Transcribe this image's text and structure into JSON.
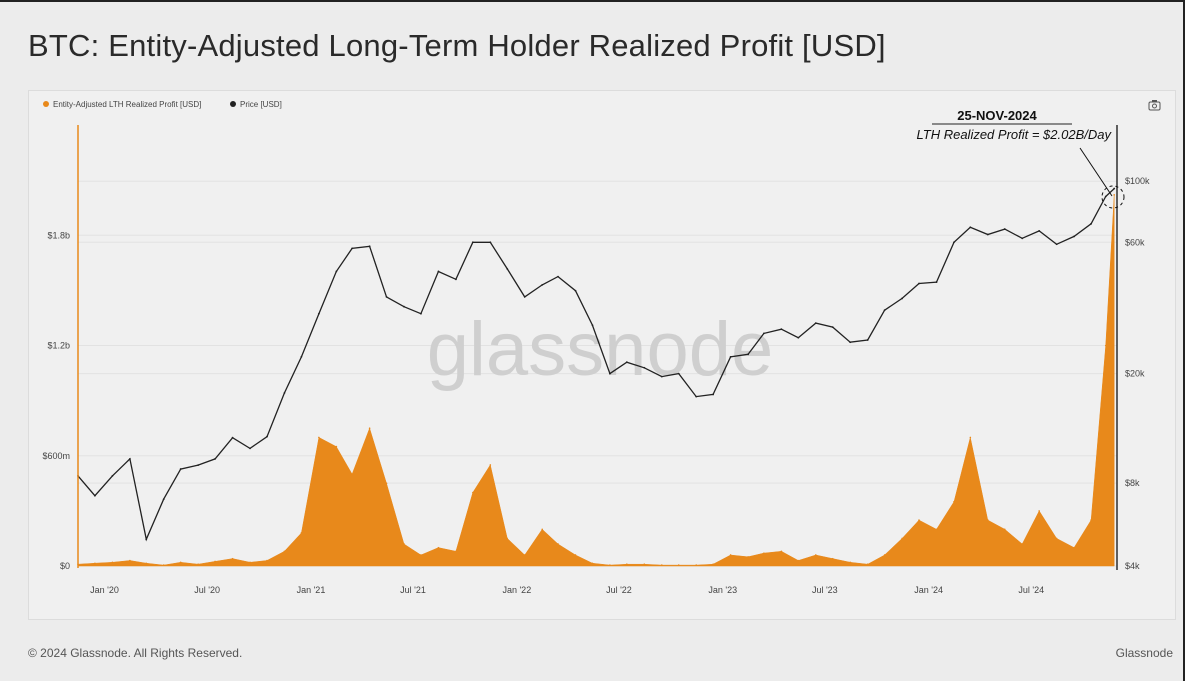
{
  "title": "BTC: Entity-Adjusted Long-Term Holder Realized Profit [USD]",
  "footer": {
    "copyright": "© 2024 Glassnode. All Rights Reserved.",
    "brand": "Glassnode"
  },
  "watermark": "glassnode",
  "icons": {
    "screenshot": "camera-icon"
  },
  "colors": {
    "profit": "#e8891b",
    "price": "#222222",
    "background": "#f0f0f0"
  },
  "chart_data": {
    "type": "area+line",
    "title": "BTC: Entity-Adjusted Long-Term Holder Realized Profit [USD]",
    "legend": {
      "placement": "top-left",
      "entries": [
        "Entity-Adjusted LTH Realized Profit [USD]",
        "Price [USD]"
      ]
    },
    "grid": true,
    "x_ticks": [
      "Jan '20",
      "Jul '20",
      "Jan '21",
      "Jul '21",
      "Jan '22",
      "Jul '22",
      "Jan '23",
      "Jul '23",
      "Jan '24",
      "Jul '24"
    ],
    "x_tick_dates": [
      "2020-01-01",
      "2020-07-01",
      "2021-01-01",
      "2021-07-01",
      "2022-01-01",
      "2022-07-01",
      "2023-01-01",
      "2023-07-01",
      "2024-01-01",
      "2024-07-01"
    ],
    "x_range": [
      "2019-11-15",
      "2024-11-30"
    ],
    "y_left": {
      "scale": "linear",
      "range": [
        0,
        2400000000
      ],
      "ticks": [
        0,
        600000000,
        1200000000,
        1800000000
      ],
      "tick_labels": [
        "$0",
        "$600m",
        "$1.2b",
        "$1.8b"
      ]
    },
    "y_right": {
      "scale": "log",
      "range": [
        4000,
        160000
      ],
      "ticks": [
        4000,
        8000,
        20000,
        60000,
        100000
      ],
      "tick_labels": [
        "$4k",
        "$8k",
        "$20k",
        "$60k",
        "$100k"
      ]
    },
    "annotation": {
      "date": "25-NOV-2024",
      "text": "LTH Realized Profit = $2.02B/Day",
      "value": 2020000000
    },
    "dates": [
      "2019-11-15",
      "2019-12-15",
      "2020-01-15",
      "2020-02-15",
      "2020-03-15",
      "2020-04-15",
      "2020-05-15",
      "2020-06-15",
      "2020-07-15",
      "2020-08-15",
      "2020-09-15",
      "2020-10-15",
      "2020-11-15",
      "2020-12-15",
      "2021-01-15",
      "2021-02-15",
      "2021-03-15",
      "2021-04-15",
      "2021-05-15",
      "2021-06-15",
      "2021-07-15",
      "2021-08-15",
      "2021-09-15",
      "2021-10-15",
      "2021-11-15",
      "2021-12-15",
      "2022-01-15",
      "2022-02-15",
      "2022-03-15",
      "2022-04-15",
      "2022-05-15",
      "2022-06-15",
      "2022-07-15",
      "2022-08-15",
      "2022-09-15",
      "2022-10-15",
      "2022-11-15",
      "2022-12-15",
      "2023-01-15",
      "2023-02-15",
      "2023-03-15",
      "2023-04-15",
      "2023-05-15",
      "2023-06-15",
      "2023-07-15",
      "2023-08-15",
      "2023-09-15",
      "2023-10-15",
      "2023-11-15",
      "2023-12-15",
      "2024-01-15",
      "2024-02-15",
      "2024-03-15",
      "2024-04-15",
      "2024-05-15",
      "2024-06-15",
      "2024-07-15",
      "2024-08-15",
      "2024-09-15",
      "2024-10-15",
      "2024-11-10",
      "2024-11-25"
    ],
    "series": [
      {
        "name": "Entity-Adjusted LTH Realized Profit [USD]",
        "axis": "left",
        "unit": "USD millions",
        "values": [
          10,
          15,
          20,
          30,
          15,
          5,
          20,
          10,
          25,
          40,
          20,
          30,
          80,
          180,
          700,
          650,
          500,
          750,
          450,
          120,
          60,
          100,
          80,
          400,
          550,
          150,
          60,
          200,
          120,
          60,
          15,
          5,
          10,
          10,
          5,
          5,
          5,
          10,
          60,
          50,
          70,
          80,
          30,
          60,
          40,
          20,
          10,
          60,
          150,
          250,
          200,
          350,
          700,
          250,
          200,
          120,
          300,
          150,
          100,
          250,
          1200,
          2020
        ]
      },
      {
        "name": "Price [USD]",
        "axis": "right",
        "values": [
          8500,
          7200,
          8500,
          9800,
          5000,
          7000,
          9000,
          9300,
          9800,
          11700,
          10700,
          11800,
          17000,
          23000,
          33000,
          47000,
          57000,
          58000,
          38000,
          35000,
          33000,
          47000,
          44000,
          60000,
          60000,
          48000,
          38000,
          42000,
          45000,
          40000,
          30000,
          20000,
          22000,
          21000,
          19500,
          20000,
          16500,
          16800,
          23000,
          23500,
          28000,
          29000,
          27000,
          30500,
          29500,
          26000,
          26500,
          34000,
          37500,
          42500,
          43000,
          60000,
          68000,
          64000,
          67000,
          62000,
          66000,
          59000,
          63000,
          70000,
          88000,
          94000
        ]
      }
    ]
  }
}
